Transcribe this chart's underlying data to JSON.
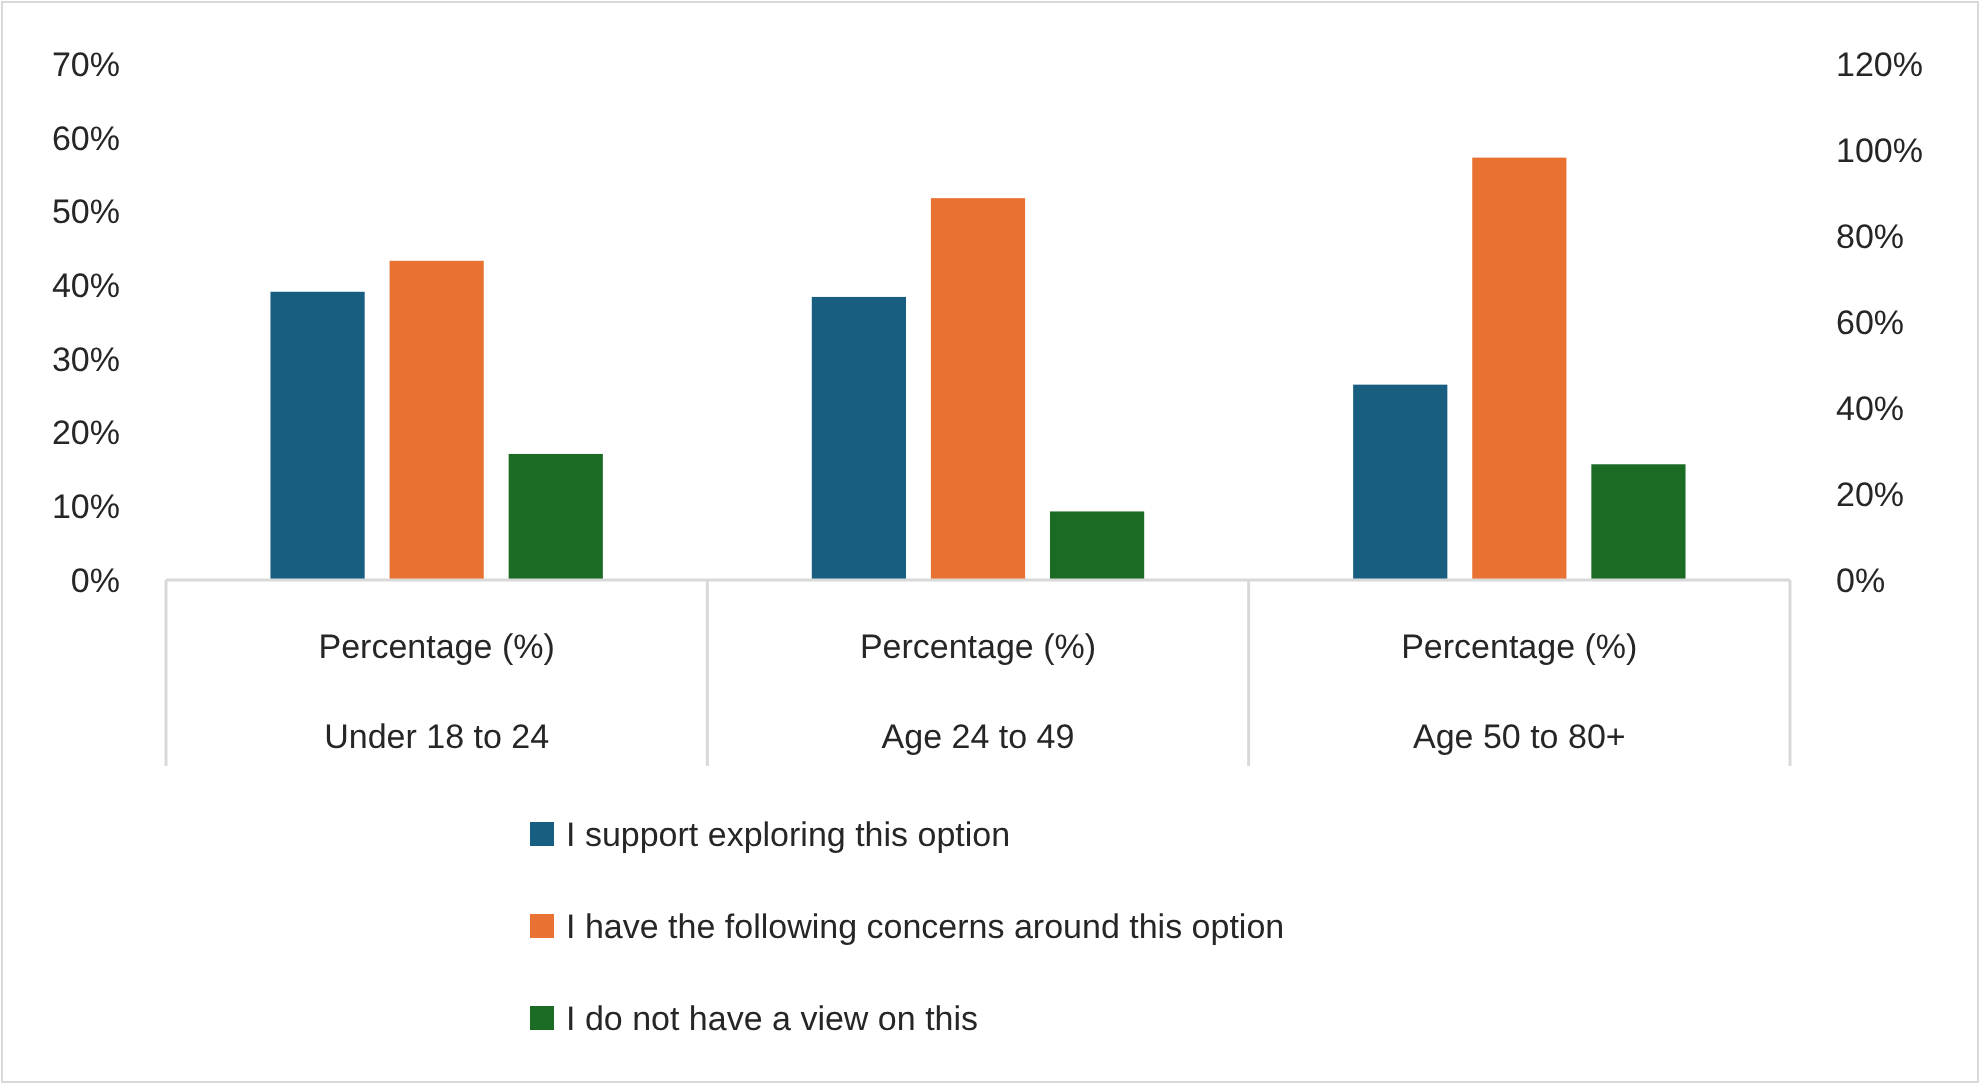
{
  "chart_data": {
    "type": "bar",
    "categories": [
      "Percentage (%)\nUnder 18 to 24",
      "Percentage (%)\nAge 24 to 49",
      "Percentage (%)\nAge 50 to 80+"
    ],
    "series": [
      {
        "name": "I support exploring this option",
        "color": "#175e80",
        "values": [
          39.1,
          38.4,
          26.5
        ]
      },
      {
        "name": "I have the following concerns around this option",
        "color": "#e97132",
        "values": [
          43.3,
          51.8,
          57.3
        ]
      },
      {
        "name": "I do not have a view on this",
        "color": "#1b6b25",
        "values": [
          17.1,
          9.3,
          15.7
        ]
      }
    ],
    "ylim": [
      0,
      70
    ],
    "yticks": [
      {
        "value": 0,
        "label": "0%"
      },
      {
        "value": 10,
        "label": "10%"
      },
      {
        "value": 20,
        "label": "20%"
      },
      {
        "value": 30,
        "label": "30%"
      },
      {
        "value": 40,
        "label": "40%"
      },
      {
        "value": 50,
        "label": "50%"
      },
      {
        "value": 60,
        "label": "60%"
      },
      {
        "value": 70,
        "label": "70%"
      }
    ],
    "y2lim": [
      0,
      120
    ],
    "y2ticks": [
      {
        "value": 0,
        "label": "0%"
      },
      {
        "value": 20,
        "label": "20%"
      },
      {
        "value": 40,
        "label": "40%"
      },
      {
        "value": 60,
        "label": "60%"
      },
      {
        "value": 80,
        "label": "80%"
      },
      {
        "value": 100,
        "label": "100%"
      },
      {
        "value": 120,
        "label": "120%"
      }
    ],
    "legend": "bottom",
    "grid": false
  }
}
